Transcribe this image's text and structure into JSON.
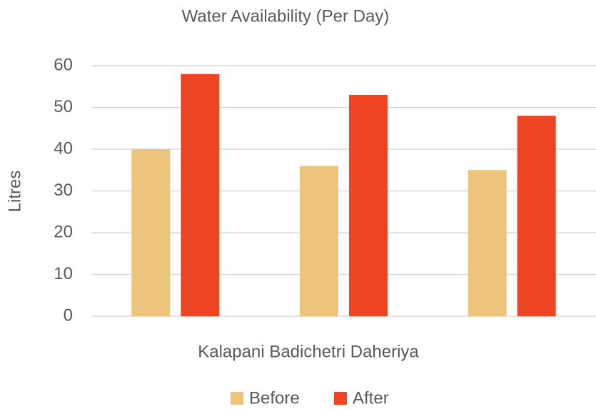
{
  "chart_data": {
    "type": "bar",
    "title": "Water Availability (Per Day)",
    "x_label": "Kalapani Badichetri Daheriya",
    "y_label": "Litres",
    "categories": [
      null,
      null,
      null
    ],
    "series": [
      {
        "name": "Before",
        "color": "#ecc47c",
        "values": [
          40,
          36,
          35
        ]
      },
      {
        "name": "After",
        "color": "#ee4423",
        "values": [
          58,
          53,
          48
        ]
      }
    ],
    "ylim": [
      0,
      60
    ],
    "yticks": [
      0,
      10,
      20,
      30,
      40,
      50,
      60
    ],
    "grid": true,
    "legend": "bottom"
  }
}
